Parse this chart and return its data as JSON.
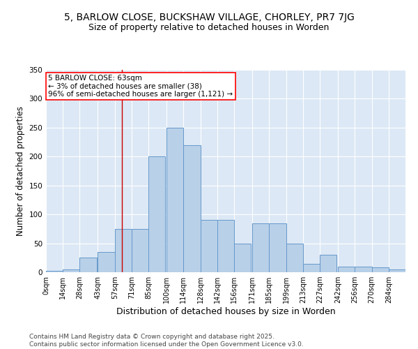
{
  "title1": "5, BARLOW CLOSE, BUCKSHAW VILLAGE, CHORLEY, PR7 7JG",
  "title2": "Size of property relative to detached houses in Worden",
  "xlabel": "Distribution of detached houses by size in Worden",
  "ylabel": "Number of detached properties",
  "bar_color": "#b8d0e8",
  "bar_edge_color": "#6699cc",
  "background_color": "#dce8f5",
  "annotation_text": "5 BARLOW CLOSE: 63sqm\n← 3% of detached houses are smaller (38)\n96% of semi-detached houses are larger (1,121) →",
  "vline_x": 63,
  "vline_color": "#cc0000",
  "bins": [
    0,
    14,
    28,
    43,
    57,
    71,
    85,
    100,
    114,
    128,
    142,
    156,
    171,
    185,
    199,
    213,
    227,
    242,
    256,
    270,
    284
  ],
  "values": [
    2,
    5,
    25,
    35,
    75,
    75,
    200,
    250,
    220,
    90,
    90,
    50,
    85,
    85,
    50,
    15,
    30,
    10,
    10,
    8,
    5
  ],
  "bin_width": 14,
  "xlim_min": 0,
  "xlim_max": 298,
  "ylim_min": 0,
  "ylim_max": 350,
  "yticks": [
    0,
    50,
    100,
    150,
    200,
    250,
    300,
    350
  ],
  "xtick_labels": [
    "0sqm",
    "14sqm",
    "28sqm",
    "43sqm",
    "57sqm",
    "71sqm",
    "85sqm",
    "100sqm",
    "114sqm",
    "128sqm",
    "142sqm",
    "156sqm",
    "171sqm",
    "185sqm",
    "199sqm",
    "213sqm",
    "227sqm",
    "242sqm",
    "256sqm",
    "270sqm",
    "284sqm"
  ],
  "footer_text": "Contains HM Land Registry data © Crown copyright and database right 2025.\nContains public sector information licensed under the Open Government Licence v3.0.",
  "title_fontsize": 10,
  "subtitle_fontsize": 9,
  "axis_label_fontsize": 8.5,
  "tick_fontsize": 7,
  "footer_fontsize": 6.5,
  "annotation_fontsize": 7.5
}
